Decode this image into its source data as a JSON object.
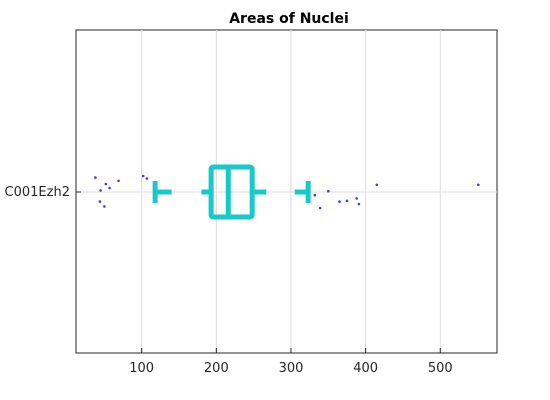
{
  "chart_data": {
    "type": "box",
    "title": "Areas of Nuclei",
    "orientation": "horizontal",
    "xlabel": "",
    "ylabel": "",
    "xlim": [
      12,
      576
    ],
    "xticks": [
      100,
      200,
      300,
      400,
      500
    ],
    "grid": true,
    "box_color": "#17c9c9",
    "outlier_color": "#3b3bff",
    "category": "C001Ezh2",
    "box": {
      "whisker_low": 118,
      "q1": 193,
      "median": 216,
      "q3": 248,
      "whisker_high": 323,
      "cap_marks": [
        140,
        180,
        267,
        305
      ]
    },
    "outliers": [
      {
        "x": 38,
        "jitter": -0.9
      },
      {
        "x": 44,
        "jitter": 0.6
      },
      {
        "x": 45,
        "jitter": -0.1
      },
      {
        "x": 50,
        "jitter": 0.9
      },
      {
        "x": 52,
        "jitter": -0.5
      },
      {
        "x": 57,
        "jitter": -0.25
      },
      {
        "x": 69,
        "jitter": -0.7
      },
      {
        "x": 102,
        "jitter": -1.0
      },
      {
        "x": 107,
        "jitter": -0.85
      },
      {
        "x": 332,
        "jitter": 0.2
      },
      {
        "x": 339,
        "jitter": 1.0
      },
      {
        "x": 350,
        "jitter": -0.05
      },
      {
        "x": 365,
        "jitter": 0.6
      },
      {
        "x": 375,
        "jitter": 0.55
      },
      {
        "x": 388,
        "jitter": 0.4
      },
      {
        "x": 391,
        "jitter": 0.75
      },
      {
        "x": 415,
        "jitter": -0.45
      },
      {
        "x": 551,
        "jitter": -0.45
      }
    ]
  }
}
